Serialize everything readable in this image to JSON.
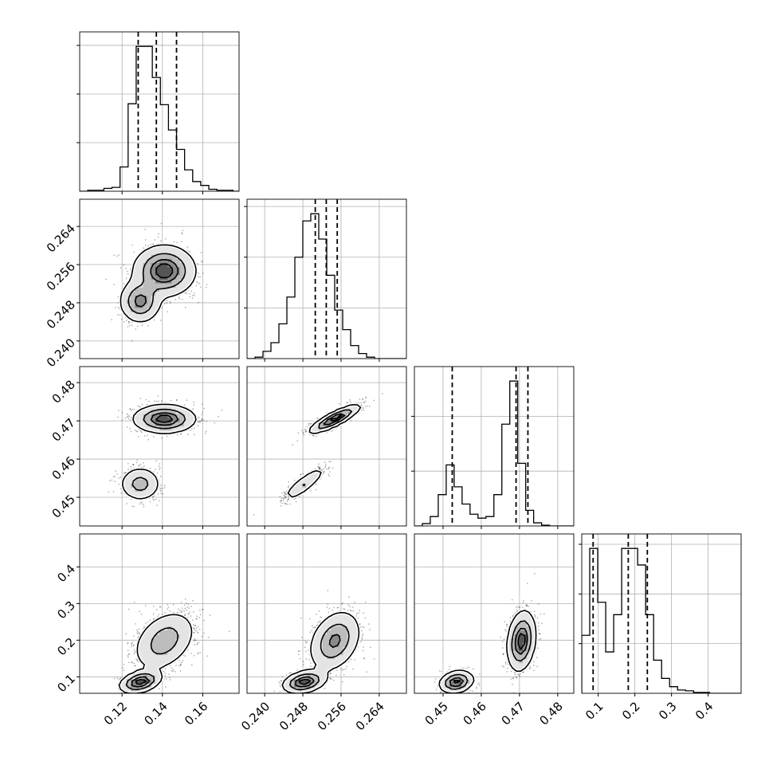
{
  "chart_data": {
    "type": "corner",
    "parameters": [
      {
        "range": [
          0.099,
          0.178
        ],
        "ticks": [
          0.12,
          0.14,
          0.16
        ],
        "tick_labels": [
          "0.12",
          "0.14",
          "0.16"
        ],
        "quantiles": [
          0.128,
          0.137,
          0.147
        ],
        "hist": {
          "edges_start": 0.099,
          "bin_width": 0.004,
          "counts": [
            0,
            1,
            1,
            3,
            4,
            25,
            90,
            149,
            149,
            117,
            89,
            63,
            43,
            22,
            10,
            6,
            2,
            1,
            1,
            0
          ]
        },
        "blobs": [
          {
            "mean": 0.136,
            "sd": 0.007,
            "weight": 1
          }
        ]
      },
      {
        "range": [
          0.2363,
          0.2697
        ],
        "ticks": [
          0.24,
          0.248,
          0.256,
          0.264
        ],
        "tick_labels": [
          "0.240",
          "0.248",
          "0.256",
          "0.264"
        ],
        "quantiles": [
          0.2506,
          0.2529,
          0.2552
        ],
        "hist": {
          "edges_start": 0.2363,
          "bin_width": 0.00167,
          "counts": [
            0,
            2,
            10,
            22,
            48,
            85,
            140,
            190,
            200,
            165,
            115,
            67,
            40,
            18,
            7,
            2,
            0,
            0,
            0,
            0
          ]
        },
        "blobs": [
          {
            "mean": 0.2529,
            "sd": 0.0035,
            "weight": 1
          }
        ]
      },
      {
        "range": [
          0.4425,
          0.4842
        ],
        "ticks": [
          0.45,
          0.46,
          0.47,
          0.48
        ],
        "tick_labels": [
          "0.45",
          "0.46",
          "0.47",
          "0.48"
        ],
        "quantiles": [
          0.4524,
          0.4691,
          0.4722
        ],
        "hist": {
          "edges_start": 0.4425,
          "bin_width": 0.00208,
          "counts": [
            0,
            3,
            12,
            40,
            78,
            50,
            28,
            15,
            10,
            12,
            40,
            130,
            185,
            80,
            20,
            4,
            1,
            0,
            0,
            0
          ]
        },
        "blobs": [
          {
            "mean": 0.4537,
            "sd": 0.0022,
            "weight": 0.3
          },
          {
            "mean": 0.4705,
            "sd": 0.0018,
            "weight": 0.7
          }
        ]
      },
      {
        "range": [
          0.055,
          0.49
        ],
        "ticks": [
          0.1,
          0.2,
          0.3,
          0.4
        ],
        "tick_labels": [
          "0.1",
          "0.2",
          "0.3",
          "0.4"
        ],
        "quantiles": [
          0.086,
          0.182,
          0.234
        ],
        "hist": {
          "edges_start": 0.055,
          "bin_width": 0.0218,
          "counts": [
            70,
            175,
            110,
            50,
            95,
            175,
            175,
            155,
            95,
            40,
            18,
            8,
            4,
            3,
            1,
            1,
            0,
            0,
            0,
            0
          ]
        },
        "blobs": [
          {
            "mean": 0.086,
            "sd": 0.015,
            "weight": 0.3
          },
          {
            "mean": 0.2,
            "sd": 0.035,
            "weight": 0.7
          }
        ]
      }
    ],
    "modes": [
      {
        "weight": 0.3,
        "mean": [
          0.129,
          0.2483,
          0.4535,
          0.086
        ],
        "sd": [
          0.005,
          0.0022,
          0.0022,
          0.015
        ]
      },
      {
        "weight": 0.7,
        "mean": [
          0.141,
          0.2547,
          0.4705,
          0.198
        ],
        "sd": [
          0.0075,
          0.0026,
          0.0018,
          0.04
        ]
      }
    ],
    "pair_correlations": {
      "1-0": 0.0,
      "2-0": 0.0,
      "2-1": 0.85,
      "3-0": 0.35,
      "3-1": 0.3,
      "3-2": 0.2
    },
    "contour_levels": [
      0.118,
      0.393,
      0.675,
      0.865
    ],
    "y_tick_labels_visible_rows": [
      1,
      2,
      3
    ],
    "x_tick_labels_visible_column_row": 3,
    "grid": true
  }
}
